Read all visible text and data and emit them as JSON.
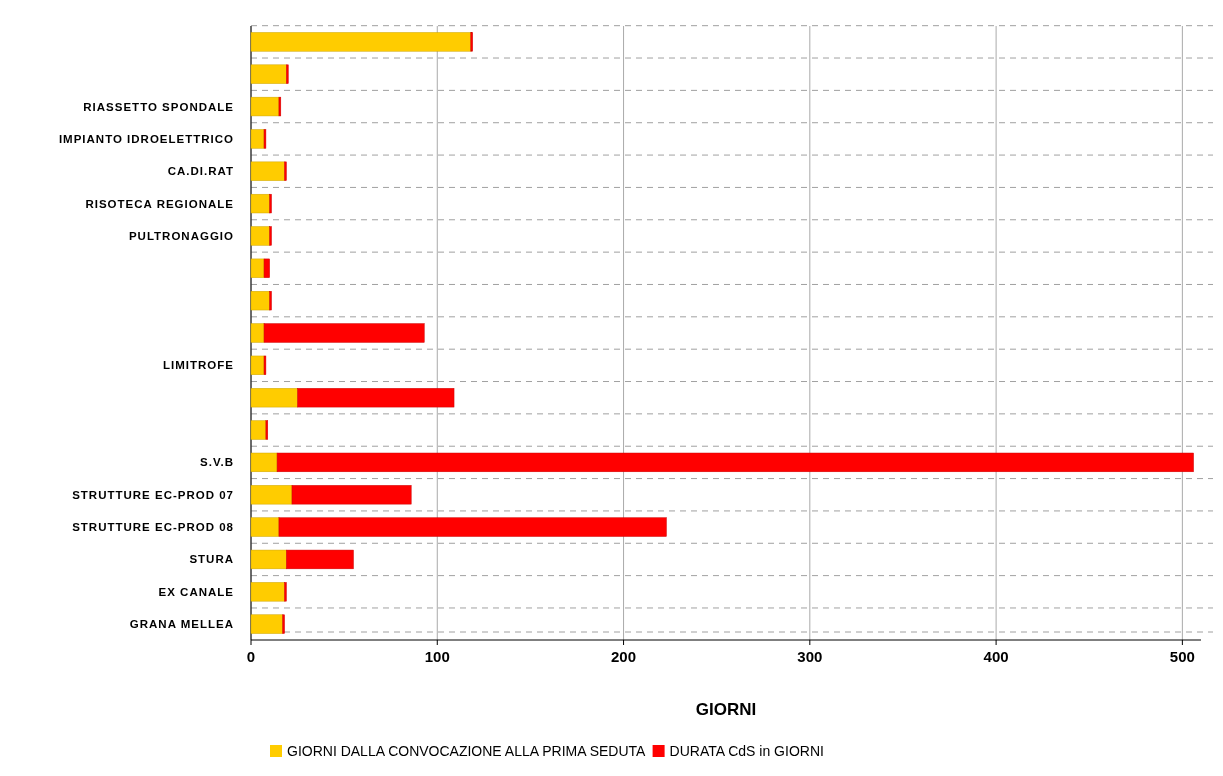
{
  "chart_data": {
    "type": "bar",
    "orientation": "horizontal",
    "stacked": true,
    "xlabel": "GIORNI",
    "categories": [
      null,
      null,
      "RIASSETTO SPONDALE",
      "IMPIANTO IDROELETTRICO",
      "CA.DI.RAT",
      "RISOTECA REGIONALE",
      "PULTRONAGGIO",
      null,
      null,
      null,
      "LIMITROFE",
      null,
      null,
      "S.V.B",
      "STRUTTURE EC-PROD 07",
      "STRUTTURE EC-PROD 08",
      "STURA",
      "EX CANALE",
      "GRANA MELLEA"
    ],
    "series": [
      {
        "name": "GIORNI DALLA CONVOCAZIONE ALLA PRIMA SEDUTA",
        "color": "#ffcc00",
        "values": [
          118,
          19,
          15,
          7,
          18,
          10,
          10,
          7,
          10,
          7,
          7,
          25,
          8,
          14,
          22,
          15,
          19,
          18,
          17
        ]
      },
      {
        "name": "DURATA CdS in GIORNI",
        "color": "#ff0000",
        "values": [
          1,
          1,
          1,
          1,
          1,
          1,
          1,
          3,
          1,
          86,
          1,
          84,
          1,
          492,
          64,
          208,
          36,
          1,
          1
        ]
      }
    ],
    "xlim": [
      0,
      510
    ],
    "xticks": [
      0,
      100,
      200,
      300,
      400,
      500
    ],
    "grid": true,
    "legend": "bottom"
  }
}
